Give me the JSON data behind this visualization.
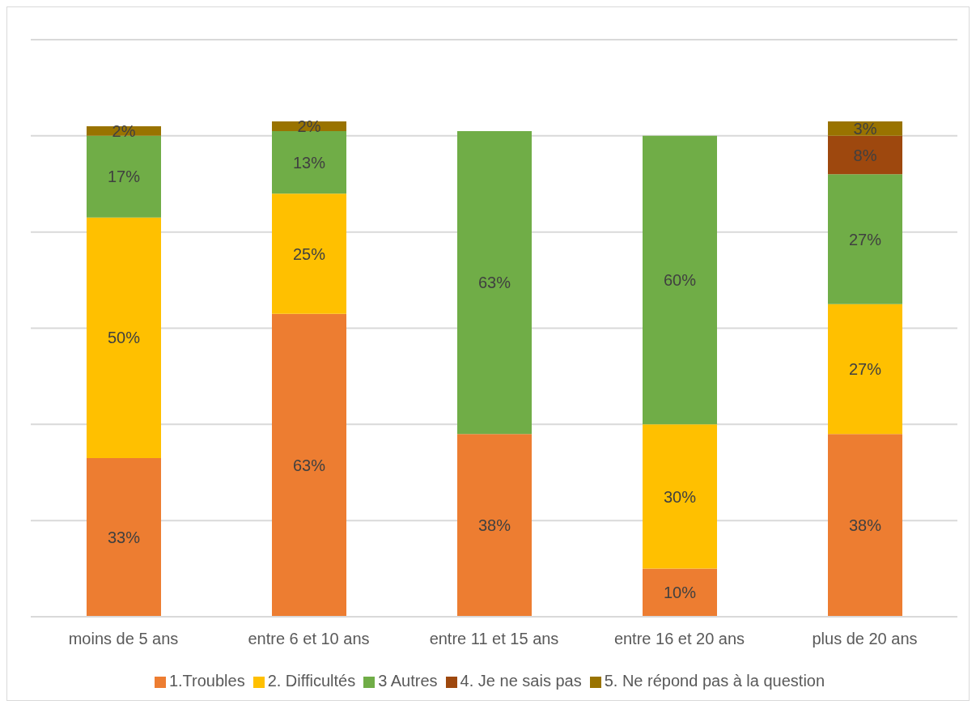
{
  "chart_data": {
    "type": "bar",
    "stacked": true,
    "categories": [
      "moins de 5 ans",
      "entre 6 et 10 ans",
      "entre 11 et 15 ans",
      "entre 16 et 20 ans",
      "plus de 20 ans"
    ],
    "series": [
      {
        "name": "1.Troubles",
        "color": "#ed7d31",
        "values": [
          33,
          63,
          38,
          10,
          38
        ],
        "value_labels": [
          "33%",
          "63%",
          "38%",
          "10%",
          "38%"
        ]
      },
      {
        "name": "2. Difficultés",
        "color": "#ffc000",
        "values": [
          50,
          25,
          null,
          30,
          27
        ],
        "value_labels": [
          "50%",
          "25%",
          null,
          "30%",
          "27%"
        ]
      },
      {
        "name": "3 Autres",
        "color": "#70ad47",
        "values": [
          17,
          13,
          63,
          60,
          27
        ],
        "value_labels": [
          "17%",
          "13%",
          "63%",
          "60%",
          "27%"
        ]
      },
      {
        "name": "4. Je ne sais pas",
        "color": "#9e480e",
        "values": [
          null,
          null,
          null,
          null,
          8
        ],
        "value_labels": [
          null,
          null,
          null,
          null,
          "8%"
        ]
      },
      {
        "name": "5. Ne répond pas à la question",
        "color": "#997300",
        "values": [
          2,
          2,
          null,
          null,
          3
        ],
        "value_labels": [
          "2%",
          "2%",
          null,
          null,
          "3%"
        ]
      }
    ],
    "tick_labels": "x",
    "grid": "y",
    "legend": "bottom"
  }
}
